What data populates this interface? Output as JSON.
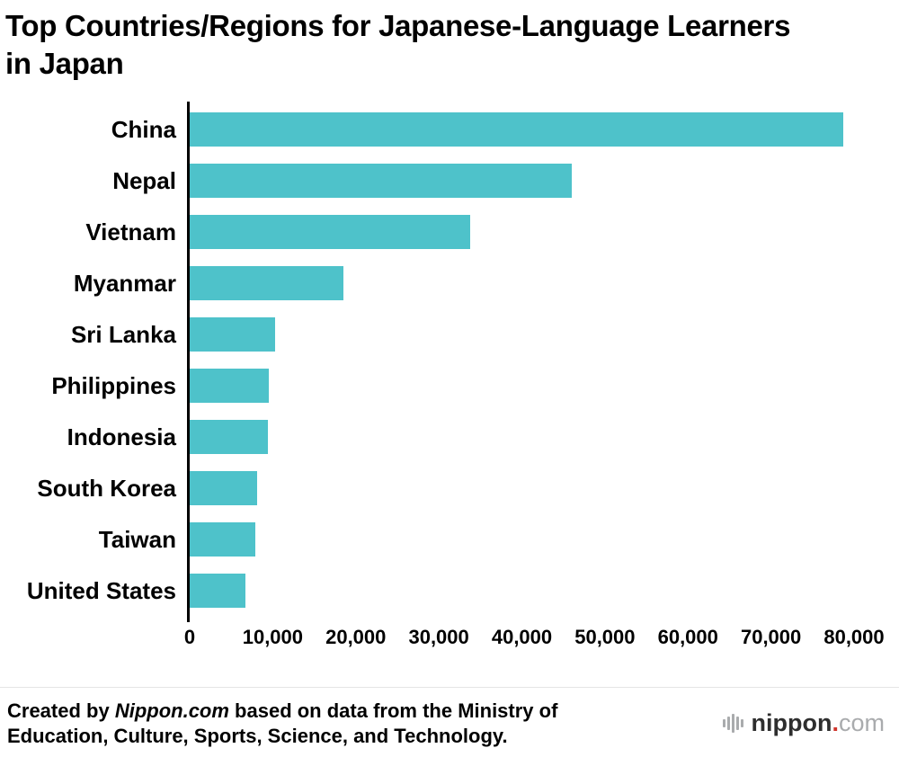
{
  "title": "Top Countries/Regions for Japanese-Language Learners in Japan",
  "chart_data": {
    "type": "bar",
    "orientation": "horizontal",
    "title": "Top Countries/Regions for Japanese-Language Learners in Japan",
    "categories": [
      "China",
      "Nepal",
      "Vietnam",
      "Myanmar",
      "Sri Lanka",
      "Philippines",
      "Indonesia",
      "South Korea",
      "Taiwan",
      "United States"
    ],
    "values": [
      78700,
      46000,
      33800,
      18500,
      10300,
      9500,
      9400,
      8100,
      7900,
      6700
    ],
    "xlabel": "",
    "ylabel": "",
    "xlim": [
      0,
      80000
    ],
    "x_ticks": [
      0,
      10000,
      20000,
      30000,
      40000,
      50000,
      60000,
      70000,
      80000
    ],
    "x_tick_labels": [
      "0",
      "10,000",
      "20,000",
      "30,000",
      "40,000",
      "50,000",
      "60,000",
      "70,000",
      "80,000"
    ],
    "bar_color": "#4ec2ca",
    "axis_color": "#000000",
    "grid": false,
    "legend": false
  },
  "footer": {
    "credit_prefix": "Created by ",
    "credit_source": "Nippon.com",
    "credit_suffix": " based on data from the Ministry of Education, Culture, Sports, Science, and Technology.",
    "logo_name": "nippon",
    "logo_dot": ".",
    "logo_tld": "com",
    "logo_dot_color": "#d0342c",
    "logo_gray": "#a9abad"
  }
}
